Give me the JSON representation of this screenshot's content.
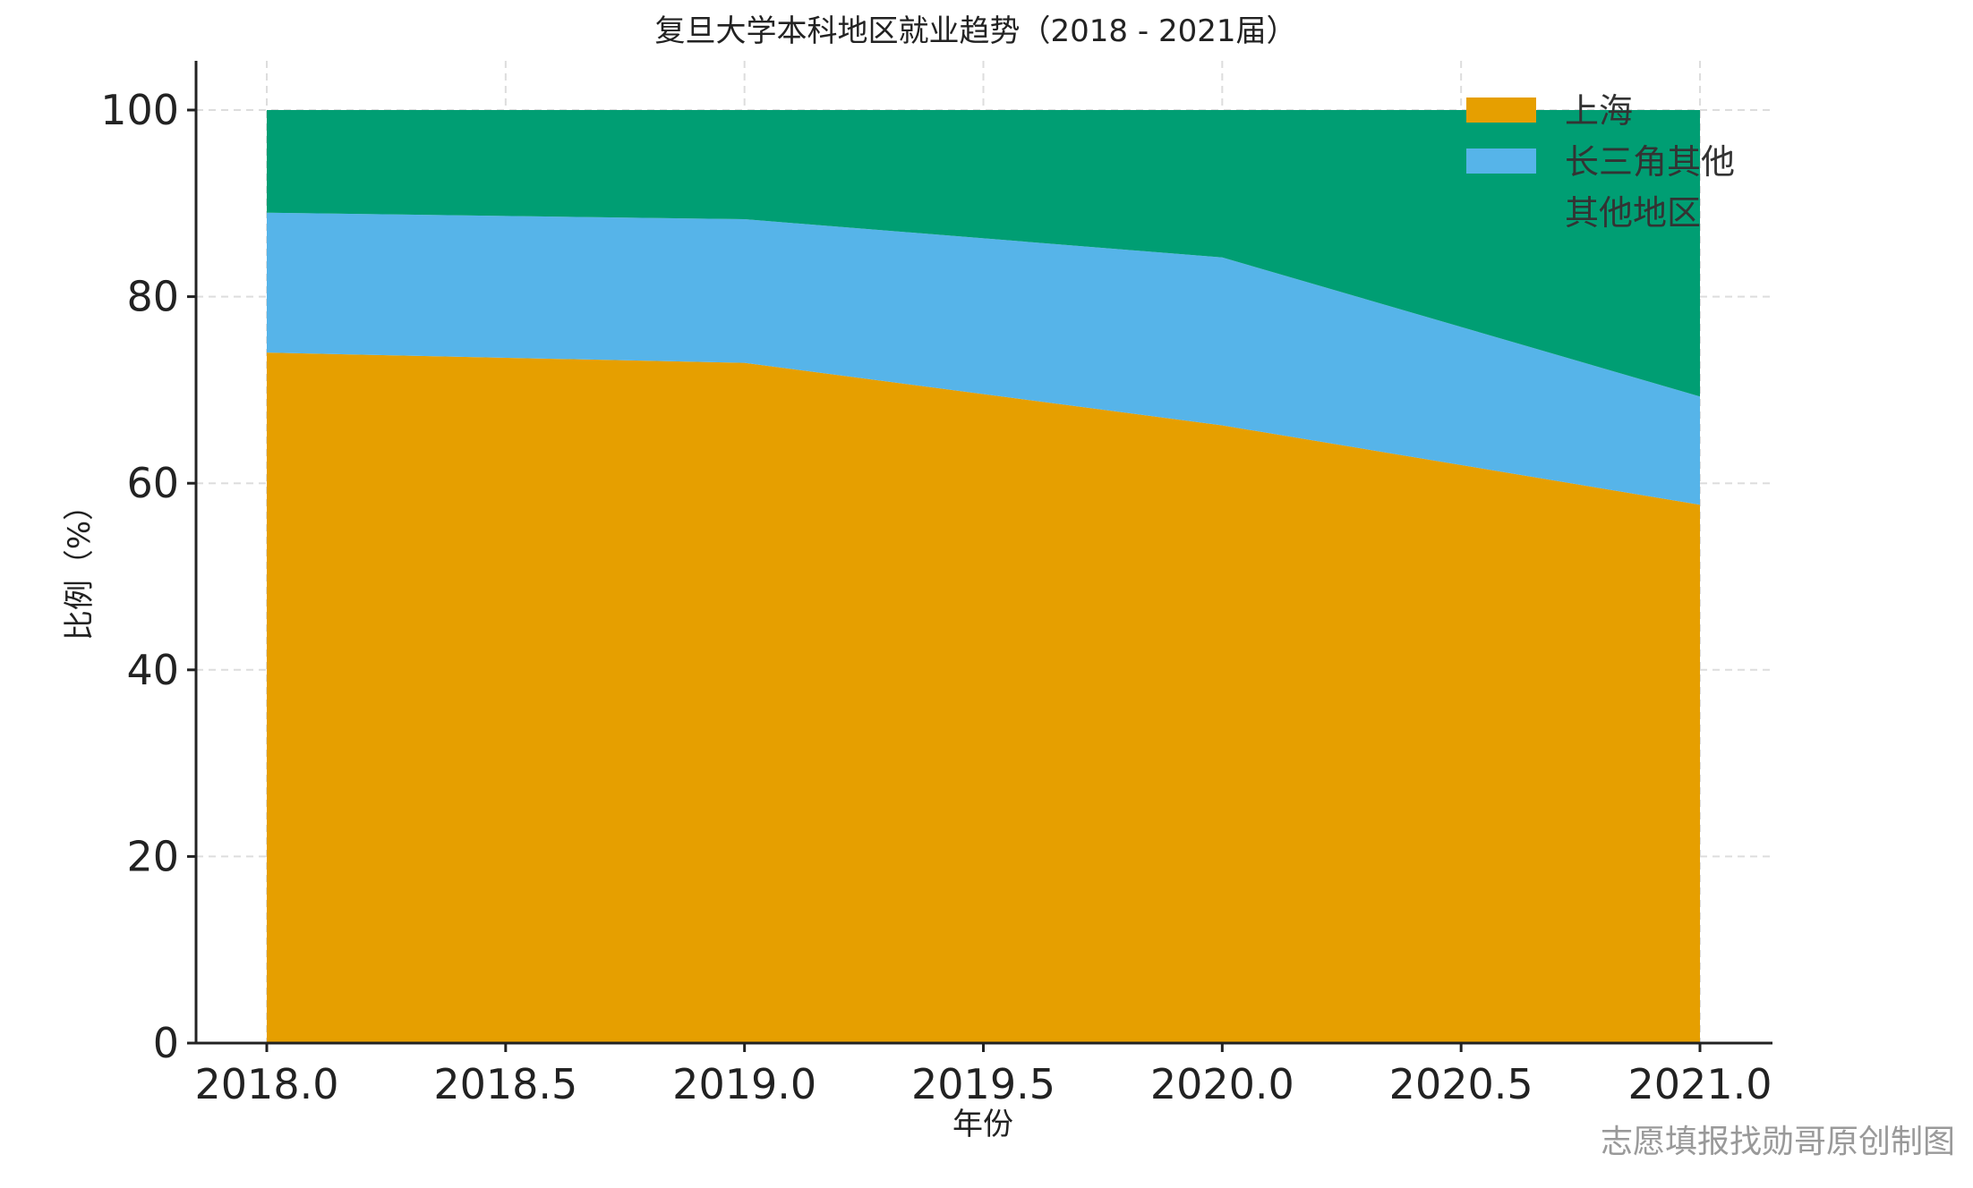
{
  "chart_data": {
    "type": "area",
    "stacked": true,
    "title": "复旦大学本科地区就业趋势（2018 - 2021届）",
    "xlabel": "年份",
    "ylabel": "比例（%）",
    "x": [
      2018,
      2019,
      2020,
      2021
    ],
    "xlim": [
      2018,
      2021
    ],
    "ylim": [
      0,
      100
    ],
    "xticks": [
      "2018.0",
      "2018.5",
      "2019.0",
      "2019.5",
      "2020.0",
      "2020.5",
      "2021.0"
    ],
    "xtick_values": [
      2018,
      2018.5,
      2019,
      2019.5,
      2020,
      2020.5,
      2021
    ],
    "yticks": [
      0,
      20,
      40,
      60,
      80,
      100
    ],
    "grid": true,
    "legend_position": "top-right",
    "series": [
      {
        "name": "上海",
        "values": [
          74.0,
          72.9,
          66.2,
          57.7
        ],
        "color": "#E69F00"
      },
      {
        "name": "长三角其他",
        "values": [
          15.0,
          15.4,
          18.0,
          11.6
        ],
        "color": "#56B4E9"
      },
      {
        "name": "其他地区",
        "values": [
          11.0,
          11.7,
          15.8,
          30.7
        ],
        "color": "#009E73"
      }
    ]
  },
  "watermark": "志愿填报找勋哥原创制图"
}
